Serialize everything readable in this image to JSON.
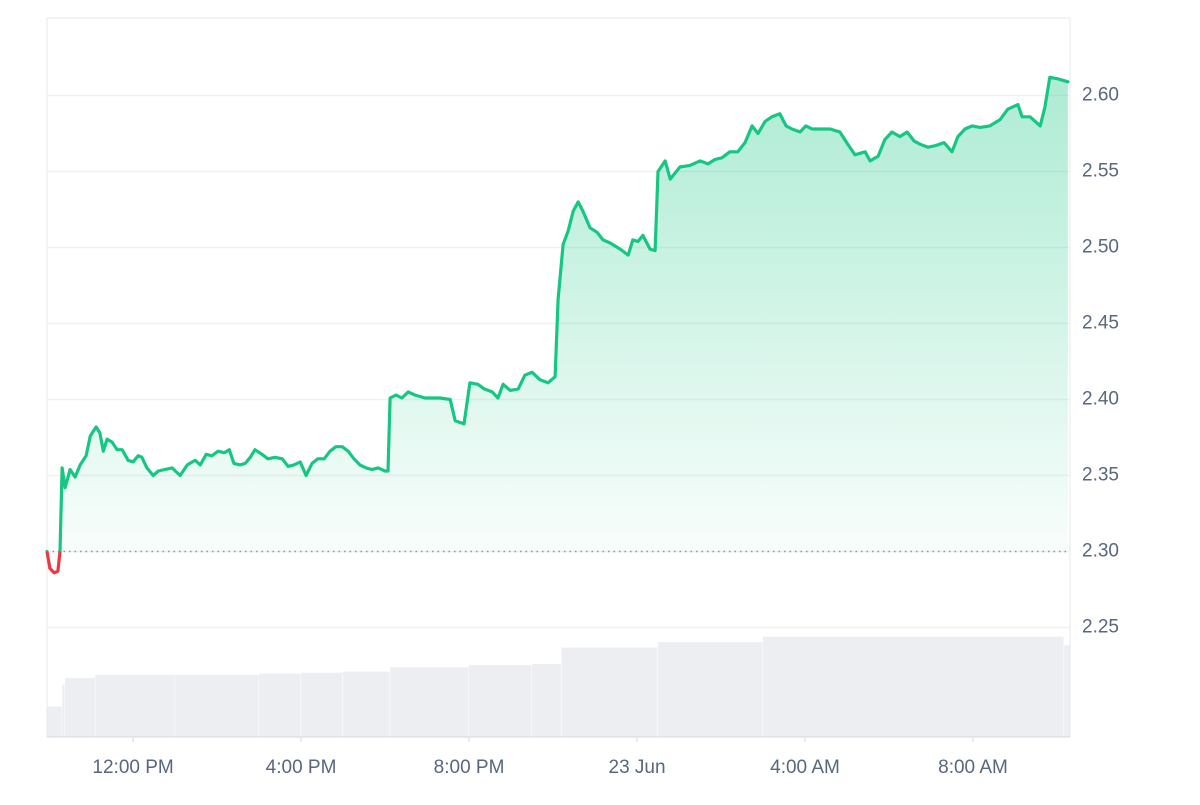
{
  "chart_data": {
    "type": "line",
    "x": [
      9.95,
      10.02,
      10.12,
      10.21,
      10.26,
      10.31,
      10.38,
      10.5,
      10.62,
      10.74,
      10.88,
      10.98,
      11.12,
      11.21,
      11.29,
      11.38,
      11.5,
      11.62,
      11.74,
      11.88,
      12.0,
      12.12,
      12.21,
      12.33,
      12.48,
      12.6,
      12.76,
      12.93,
      13.12,
      13.29,
      13.48,
      13.6,
      13.74,
      13.88,
      14.02,
      14.17,
      14.29,
      14.4,
      14.55,
      14.67,
      14.79,
      14.9,
      15.07,
      15.21,
      15.38,
      15.55,
      15.69,
      15.83,
      15.98,
      16.12,
      16.26,
      16.4,
      16.55,
      16.69,
      16.83,
      16.98,
      17.12,
      17.26,
      17.4,
      17.55,
      17.69,
      17.83,
      18.0,
      18.07,
      18.12,
      18.26,
      18.4,
      18.55,
      18.71,
      18.95,
      19.31,
      19.55,
      19.67,
      19.88,
      20.02,
      20.21,
      20.36,
      20.55,
      20.69,
      20.81,
      20.98,
      21.17,
      21.33,
      21.5,
      21.69,
      21.88,
      22.05,
      22.12,
      22.24,
      22.36,
      22.48,
      22.6,
      22.71,
      22.88,
      23.05,
      23.19,
      23.36,
      23.6,
      23.79,
      23.9,
      24.02,
      24.14,
      24.31,
      24.43,
      24.5,
      24.67,
      24.79,
      25.02,
      25.26,
      25.5,
      25.69,
      25.86,
      26.02,
      26.21,
      26.4,
      26.57,
      26.74,
      26.88,
      27.05,
      27.21,
      27.4,
      27.55,
      27.69,
      27.88,
      28.02,
      28.17,
      28.36,
      28.6,
      28.83,
      29.02,
      29.19,
      29.43,
      29.55,
      29.74,
      29.9,
      30.07,
      30.26,
      30.43,
      30.6,
      30.74,
      30.93,
      31.1,
      31.31,
      31.5,
      31.64,
      31.81,
      31.98,
      32.17,
      32.4,
      32.64,
      32.83,
      33.07,
      33.17,
      33.36,
      33.6,
      33.71,
      33.83,
      34.02,
      34.26
    ],
    "values": [
      2.3,
      2.289,
      2.286,
      2.287,
      2.3,
      2.355,
      2.342,
      2.354,
      2.349,
      2.357,
      2.363,
      2.376,
      2.382,
      2.378,
      2.366,
      2.374,
      2.372,
      2.367,
      2.367,
      2.36,
      2.359,
      2.363,
      2.362,
      2.355,
      2.35,
      2.353,
      2.354,
      2.355,
      2.35,
      2.357,
      2.36,
      2.357,
      2.364,
      2.363,
      2.366,
      2.365,
      2.367,
      2.358,
      2.357,
      2.358,
      2.362,
      2.367,
      2.364,
      2.361,
      2.362,
      2.361,
      2.356,
      2.357,
      2.359,
      2.35,
      2.358,
      2.361,
      2.361,
      2.366,
      2.369,
      2.369,
      2.366,
      2.361,
      2.357,
      2.355,
      2.354,
      2.355,
      2.353,
      2.353,
      2.401,
      2.403,
      2.401,
      2.405,
      2.403,
      2.401,
      2.401,
      2.4,
      2.386,
      2.384,
      2.411,
      2.41,
      2.407,
      2.405,
      2.401,
      2.41,
      2.406,
      2.407,
      2.416,
      2.418,
      2.413,
      2.411,
      2.415,
      2.466,
      2.502,
      2.511,
      2.524,
      2.53,
      2.524,
      2.513,
      2.51,
      2.505,
      2.503,
      2.499,
      2.495,
      2.505,
      2.504,
      2.508,
      2.499,
      2.498,
      2.55,
      2.557,
      2.545,
      2.553,
      2.554,
      2.557,
      2.555,
      2.558,
      2.559,
      2.563,
      2.563,
      2.569,
      2.58,
      2.575,
      2.583,
      2.586,
      2.588,
      2.58,
      2.578,
      2.576,
      2.58,
      2.578,
      2.578,
      2.578,
      2.576,
      2.568,
      2.561,
      2.563,
      2.557,
      2.56,
      2.571,
      2.576,
      2.573,
      2.576,
      2.57,
      2.568,
      2.566,
      2.567,
      2.569,
      2.563,
      2.573,
      2.578,
      2.58,
      2.579,
      2.58,
      2.584,
      2.591,
      2.594,
      2.586,
      2.586,
      2.58,
      2.592,
      2.612,
      2.611,
      2.609
    ],
    "color": "#16c784",
    "below_color": "#ea3943",
    "baseline": 2.3,
    "xlim": [
      9.95,
      34.31
    ],
    "ylim": [
      2.178,
      2.651
    ],
    "xticks": [
      {
        "value": 12,
        "label": "12:00 PM"
      },
      {
        "value": 16,
        "label": "4:00 PM"
      },
      {
        "value": 20,
        "label": "8:00 PM"
      },
      {
        "value": 24,
        "label": "23 Jun"
      },
      {
        "value": 28,
        "label": "4:00 AM"
      },
      {
        "value": 32,
        "label": "8:00 AM"
      }
    ],
    "yticks": [
      2.25,
      {
        "value": 2.3,
        "label": "2.30"
      },
      2.35,
      {
        "value": 2.4,
        "label": "2.40"
      },
      2.45,
      {
        "value": 2.5,
        "label": "2.50"
      },
      2.55,
      {
        "value": 2.6,
        "label": "2.60"
      }
    ],
    "grid": true,
    "volume": {
      "x": [
        9.95,
        10.31,
        10.38,
        11.1,
        13,
        15,
        16,
        17,
        18.12,
        20,
        21.5,
        22.2,
        24.5,
        27,
        34.17
      ],
      "values": [
        28,
        48,
        54,
        57,
        57,
        58,
        59,
        60,
        64,
        66,
        67,
        82,
        87,
        92,
        84
      ],
      "color": "#eceef2",
      "y2lim": [
        0,
        100
      ]
    }
  }
}
